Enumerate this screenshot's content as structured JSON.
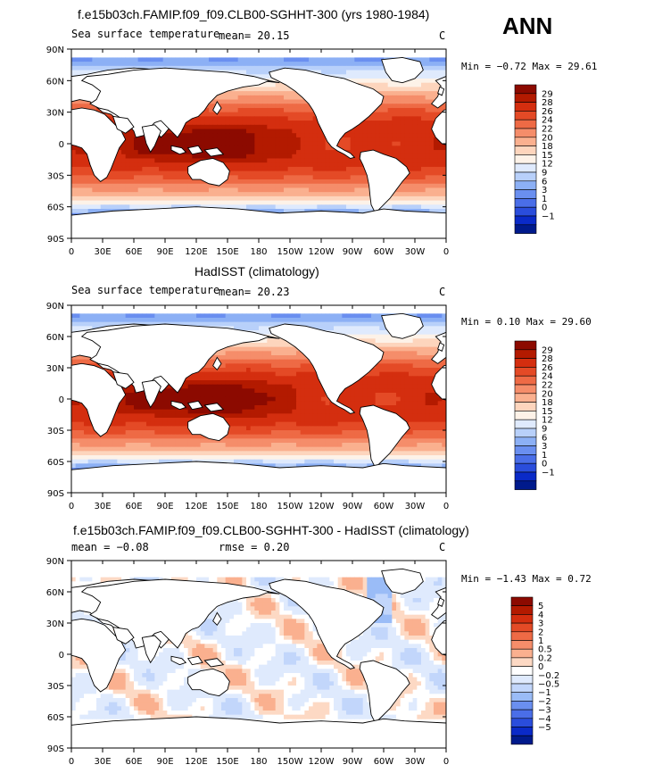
{
  "season": "ANN",
  "unit_symbol": "C",
  "panels": [
    {
      "title": "f.e15b03ch.FAMIP.f09_f09.CLB00-SGHHT-300 (yrs 1980-1984)",
      "variable": "Sea surface temperature",
      "stat1": "mean=   20.15",
      "stat2": "",
      "minmax": "Min =  −0.72 Max =   29.61"
    },
    {
      "title": "HadISST (climatology)",
      "variable": "Sea surface temperature",
      "stat1": "mean=   20.23",
      "stat2": "",
      "minmax": "Min =   0.10 Max =   29.60"
    },
    {
      "title": "f.e15b03ch.FAMIP.f09_f09.CLB00-SGHHT-300 - HadISST (climatology)",
      "variable": "",
      "stat1": "mean =   −0.08",
      "stat2": "rmse =    0.20",
      "minmax": "Min =  −1.43 Max =    0.72"
    }
  ],
  "axes": {
    "lon_ticks": [
      "0",
      "30E",
      "60E",
      "90E",
      "120E",
      "150E",
      "180",
      "150W",
      "120W",
      "90W",
      "60W",
      "30W",
      "0"
    ],
    "lat_ticks": [
      "90N",
      "60N",
      "30N",
      "0",
      "30S",
      "60S",
      "90S"
    ]
  },
  "colorbars": {
    "sst_levels": [
      "29",
      "28",
      "26",
      "24",
      "22",
      "20",
      "18",
      "15",
      "12",
      "9",
      "6",
      "3",
      "1",
      "0",
      "−1"
    ],
    "sst_colors": [
      "#8c0a00",
      "#b31a00",
      "#d42e0f",
      "#e44a26",
      "#ee6a45",
      "#f58d6a",
      "#fab08f",
      "#fdd5bd",
      "#fdf2e8",
      "#dfeafd",
      "#b8d0fa",
      "#8cb0f5",
      "#6a8ff0",
      "#4a6ee8",
      "#2a4ddc",
      "#0a2ac8",
      "#001a8c"
    ],
    "diff_levels": [
      "5",
      "4",
      "3",
      "2",
      "1",
      "0.5",
      "0.2",
      "0",
      "−0.2",
      "−0.5",
      "−1",
      "−2",
      "−3",
      "−4",
      "−5"
    ],
    "diff_colors": [
      "#8c0a00",
      "#b31a00",
      "#d42e0f",
      "#e44a26",
      "#ee6a45",
      "#f58d6a",
      "#fab08f",
      "#fdd9c4",
      "#ffffff",
      "#dfeafd",
      "#c2d6fb",
      "#9abcf7",
      "#6a8ff0",
      "#4a6ee8",
      "#2a4ddc",
      "#0a2ac8",
      "#001a8c"
    ]
  },
  "chart_data": [
    {
      "type": "heatmap",
      "title": "f.e15b03ch.FAMIP.f09_f09.CLB00-SGHHT-300 (yrs 1980-1984)",
      "variable": "Sea surface temperature",
      "units": "C",
      "mean": 20.15,
      "min": -0.72,
      "max": 29.61,
      "contour_levels": [
        -1,
        0,
        1,
        3,
        6,
        9,
        12,
        15,
        18,
        20,
        22,
        24,
        26,
        28,
        29
      ],
      "xlim": [
        0,
        360
      ],
      "ylim": [
        -90,
        90
      ]
    },
    {
      "type": "heatmap",
      "title": "HadISST (climatology)",
      "variable": "Sea surface temperature",
      "units": "C",
      "mean": 20.23,
      "min": 0.1,
      "max": 29.6,
      "contour_levels": [
        -1,
        0,
        1,
        3,
        6,
        9,
        12,
        15,
        18,
        20,
        22,
        24,
        26,
        28,
        29
      ],
      "xlim": [
        0,
        360
      ],
      "ylim": [
        -90,
        90
      ]
    },
    {
      "type": "heatmap",
      "title": "f.e15b03ch.FAMIP.f09_f09.CLB00-SGHHT-300 - HadISST (climatology)",
      "units": "C",
      "mean": -0.08,
      "rmse": 0.2,
      "min": -1.43,
      "max": 0.72,
      "contour_levels": [
        -5,
        -4,
        -3,
        -2,
        -1,
        -0.5,
        -0.2,
        0,
        0.2,
        0.5,
        1,
        2,
        3,
        4,
        5
      ],
      "xlim": [
        0,
        360
      ],
      "ylim": [
        -90,
        90
      ]
    }
  ]
}
